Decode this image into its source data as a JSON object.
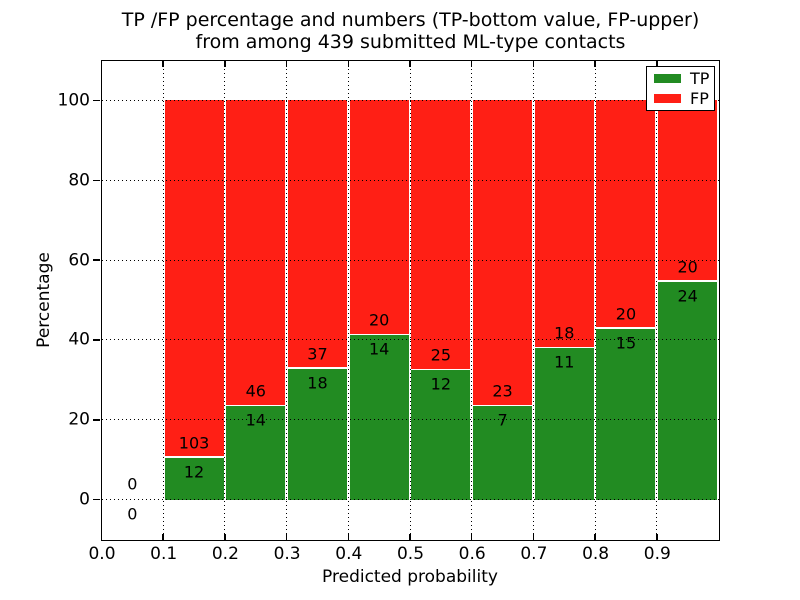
{
  "title": {
    "line1": "TP /FP percentage and numbers (TP-bottom value, FP-upper)",
    "line2": "from among 439 submitted ML-type contacts"
  },
  "axes": {
    "xlabel": "Predicted probability",
    "ylabel": "Percentage",
    "x_tick_labels": [
      "0.0",
      "0.1",
      "0.2",
      "0.3",
      "0.4",
      "0.5",
      "0.6",
      "0.7",
      "0.8",
      "0.9"
    ],
    "y_tick_labels": [
      "0",
      "20",
      "40",
      "60",
      "80",
      "100"
    ],
    "xlim": [
      0.0,
      1.0
    ],
    "ylim": [
      -10,
      110
    ]
  },
  "legend": {
    "items": [
      {
        "label": "TP",
        "color": "#228b22"
      },
      {
        "label": "FP",
        "color": "#ff1f15"
      }
    ]
  },
  "chart_data": {
    "type": "bar",
    "stacked": true,
    "normalized": "each bin stack scaled to 100 percent; labels show raw counts",
    "title": "TP /FP percentage and numbers (TP-bottom value, FP-upper) from among 439 submitted ML-type contacts",
    "xlabel": "Predicted probability",
    "ylabel": "Percentage",
    "xlim": [
      0.0,
      1.0
    ],
    "ylim": [
      -10,
      110
    ],
    "grid": "dotted black, both axes, drawn above bars",
    "legend_position": "upper right",
    "bin_edges": [
      0.0,
      0.1,
      0.2,
      0.3,
      0.4,
      0.5,
      0.6,
      0.7,
      0.8,
      0.9,
      1.0
    ],
    "categories": [
      "0.0-0.1",
      "0.1-0.2",
      "0.2-0.3",
      "0.3-0.4",
      "0.4-0.5",
      "0.5-0.6",
      "0.6-0.7",
      "0.7-0.8",
      "0.8-0.9",
      "0.9-1.0"
    ],
    "series": [
      {
        "name": "TP",
        "color": "#228b22",
        "counts": [
          0,
          12,
          14,
          18,
          14,
          12,
          7,
          11,
          15,
          24
        ],
        "percent_of_bin": [
          0,
          10.4,
          23.3,
          32.7,
          41.2,
          32.4,
          23.3,
          37.9,
          42.9,
          54.5
        ]
      },
      {
        "name": "FP",
        "color": "#ff1f15",
        "counts": [
          0,
          103,
          46,
          37,
          20,
          25,
          23,
          18,
          20,
          20
        ],
        "percent_of_bin": [
          0,
          89.6,
          76.7,
          67.3,
          58.8,
          67.6,
          76.7,
          62.1,
          57.1,
          45.5
        ]
      }
    ]
  }
}
